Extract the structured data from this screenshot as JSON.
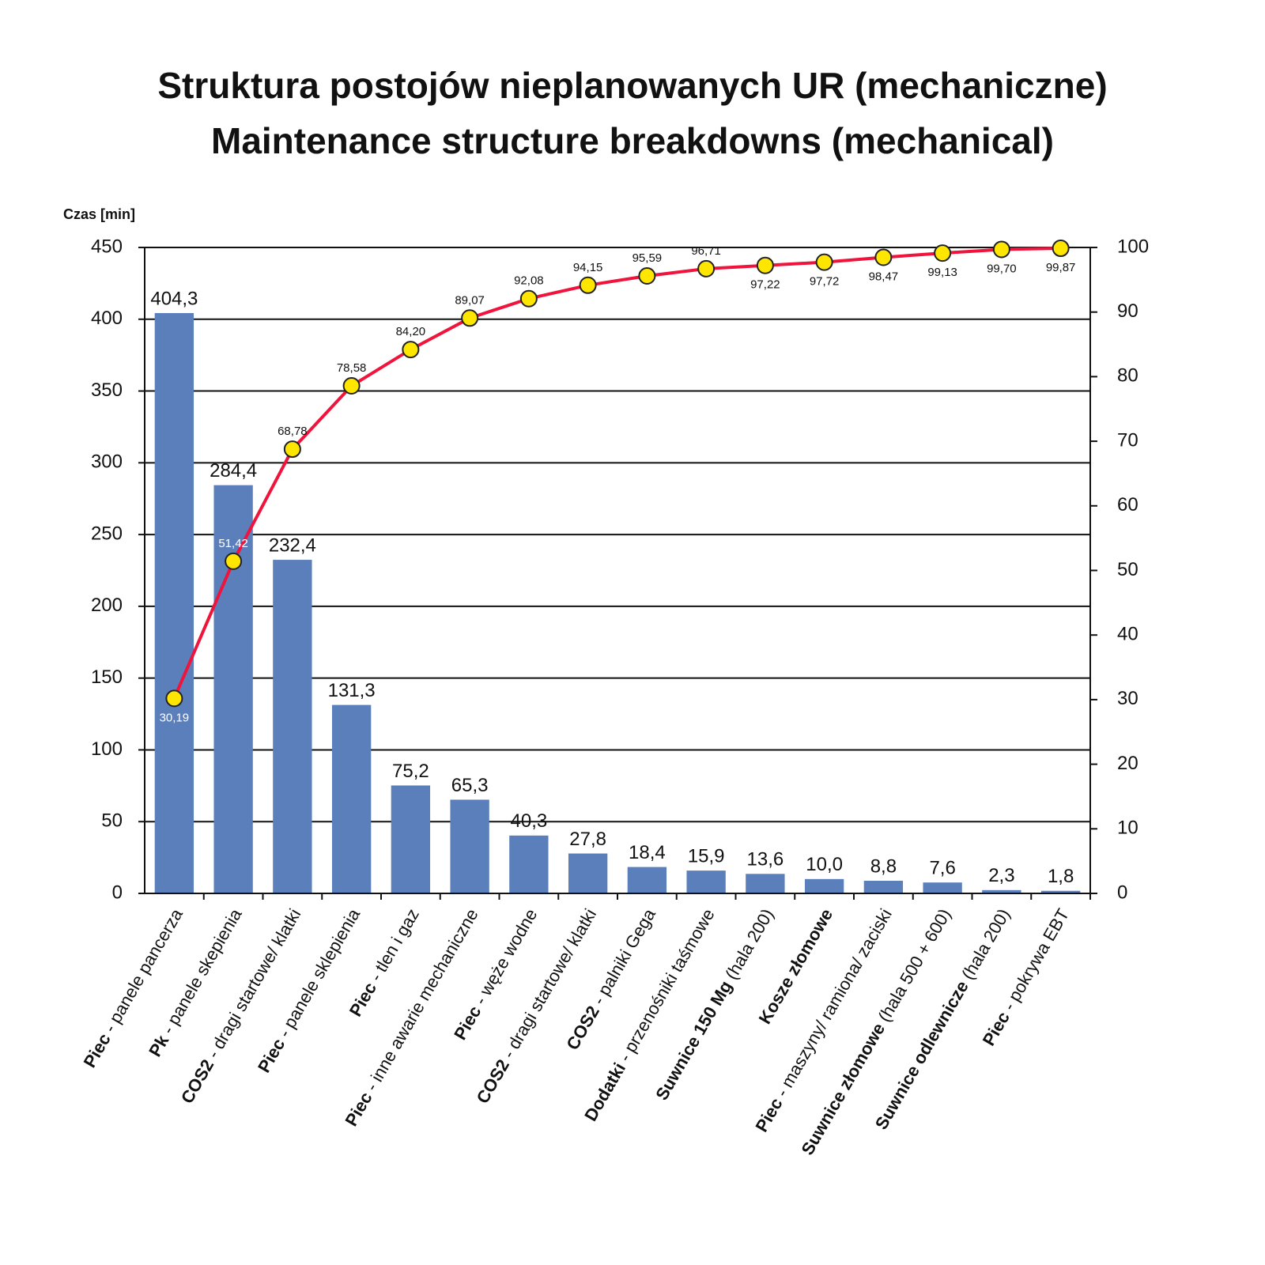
{
  "chart_data": {
    "type": "bar",
    "title": "Struktura postojów nieplanowanych UR (mechaniczne)",
    "subtitle": "Maintenance structure breakdowns (mechanical)",
    "y_label": "Czas [min]",
    "categories": [
      [
        "Piec",
        " - panele pancerza"
      ],
      [
        "Pk",
        " - panele skepienia"
      ],
      [
        "COS2",
        " - dragi startowe/ klatki"
      ],
      [
        "Piec",
        " - panele sklepienia"
      ],
      [
        "Piec",
        " - tlen i gaz"
      ],
      [
        "Piec",
        " - inne awarie mechaniczne"
      ],
      [
        "Piec",
        " - węże wodne"
      ],
      [
        "COS2",
        " - dragi startowe/ klatki"
      ],
      [
        "COS2",
        " - palniki Gega"
      ],
      [
        "Dodatki",
        " - przenośniki taśmowe"
      ],
      [
        "Suwnice 150 Mg",
        " (hala 200)"
      ],
      [
        "Kosze złomowe"
      ],
      [
        "Piec",
        " - maszyny/ ramiona/ zaciski"
      ],
      [
        "Suwnice złomowe",
        " (hala 500 + 600)"
      ],
      [
        "Suwnice odlewnicze",
        " (hala 200)"
      ],
      [
        "Piec",
        " - pokrywa EBT"
      ]
    ],
    "series": [
      {
        "type": "bar",
        "color": "#5b7fbb",
        "values": [
          404.3,
          284.4,
          232.4,
          131.3,
          75.2,
          65.3,
          40.3,
          27.8,
          18.4,
          15.9,
          13.6,
          10.0,
          8.8,
          7.6,
          2.3,
          1.8
        ],
        "value_labels": [
          "404,3",
          "284,4",
          "232,4",
          "131,3",
          "75,2",
          "65,3",
          "40,3",
          "27,8",
          "18,4",
          "15,9",
          "13,6",
          "10,0",
          "8,8",
          "7,6",
          "2,3",
          "1,8"
        ]
      },
      {
        "type": "line",
        "axis": "y2",
        "color": "#f0143c",
        "marker_color": "#ffe600",
        "values": [
          30.19,
          51.42,
          68.78,
          78.58,
          84.2,
          89.07,
          92.08,
          94.15,
          95.59,
          96.71,
          97.22,
          97.72,
          98.47,
          99.13,
          99.7,
          99.87
        ],
        "value_labels": [
          "30,19",
          "51,42",
          "68,78",
          "78,58",
          "84,20",
          "89,07",
          "92,08",
          "94,15",
          "95,59",
          "96,71",
          "97,22",
          "97,72",
          "98,47",
          "99,13",
          "99,70",
          "99,87"
        ]
      }
    ],
    "ylim": [
      0,
      450
    ],
    "yticks": [
      0,
      50,
      100,
      150,
      200,
      250,
      300,
      350,
      400,
      450
    ],
    "y2lim": [
      0,
      100
    ],
    "y2ticks": [
      0,
      10,
      20,
      30,
      40,
      50,
      60,
      70,
      80,
      90,
      100
    ],
    "grid": true
  }
}
